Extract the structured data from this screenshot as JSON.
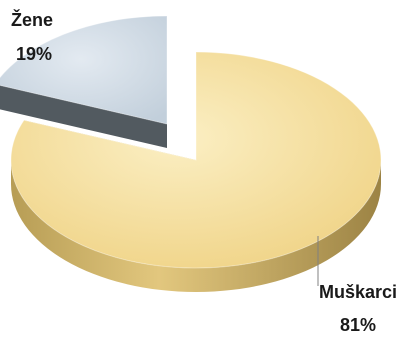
{
  "chart_data": {
    "type": "pie",
    "style": "3d-exploded",
    "slices": [
      {
        "label": "Muškarci",
        "percent_label": "81%",
        "value": 81,
        "color": "#f5df9c",
        "side_color": "#cdb46a"
      },
      {
        "label": "Žene",
        "percent_label": "19%",
        "value": 19,
        "color": "#cfdbe6",
        "side_color": "#525a60"
      }
    ],
    "legend": "none",
    "data_labels": "outside"
  }
}
